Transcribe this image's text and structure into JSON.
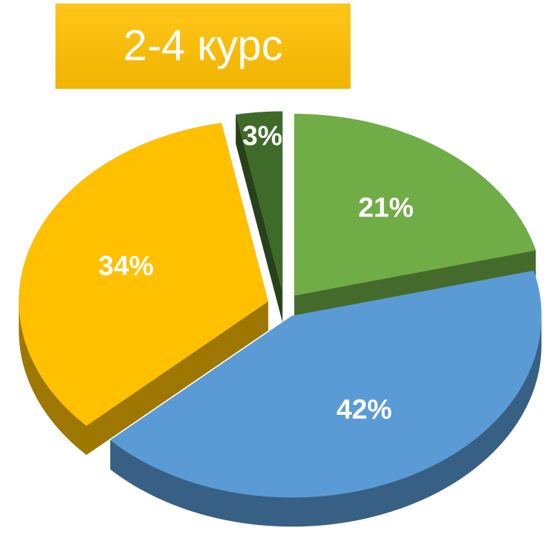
{
  "chart_data": {
    "type": "pie",
    "title": "2-4  курс",
    "values": [
      21,
      42,
      34,
      3
    ],
    "value_labels": [
      "21%",
      "42%",
      "34%",
      "3%"
    ],
    "colors": [
      "#70ad47",
      "#5b9bd5",
      "#ffc000",
      "#3f6b2a"
    ]
  }
}
